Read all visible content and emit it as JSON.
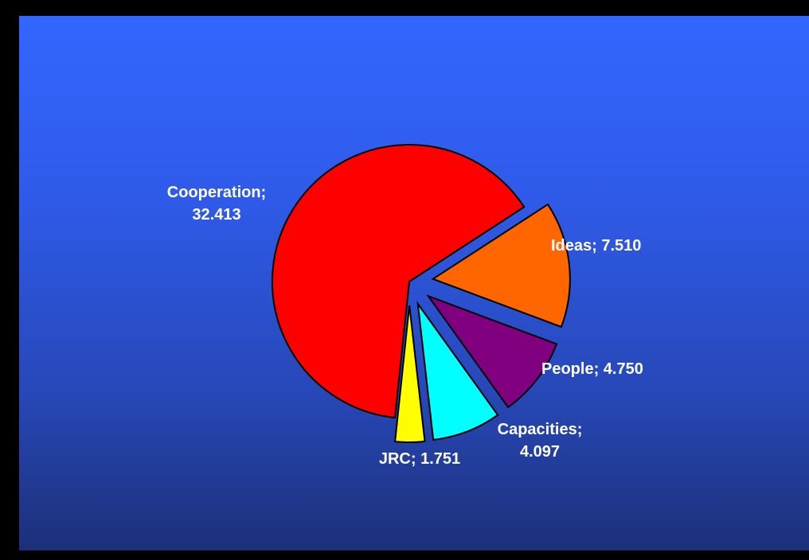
{
  "chart_data": {
    "type": "pie",
    "title": "",
    "series": [
      {
        "values": [
          32.413,
          7.51,
          4.75,
          4.097,
          1.751
        ],
        "categories": [
          "Cooperation",
          "Ideas",
          "People",
          "Capacities",
          "JRC"
        ]
      }
    ],
    "slices": [
      {
        "name": "Cooperation",
        "value": 32.413,
        "color": "#ff0000",
        "label_line1": "Cooperation;",
        "label_line2": "32.413"
      },
      {
        "name": "Ideas",
        "value": 7.51,
        "color": "#ff6600",
        "label_line1": "Ideas; 7.510",
        "label_line2": ""
      },
      {
        "name": "People",
        "value": 4.75,
        "color": "#800080",
        "label_line1": "People; 4.750",
        "label_line2": ""
      },
      {
        "name": "Capacities",
        "value": 4.097,
        "color": "#00ffff",
        "label_line1": "Capacities;",
        "label_line2": "4.097"
      },
      {
        "name": "JRC",
        "value": 1.751,
        "color": "#ffff00",
        "label_line1": "JRC; 1.751",
        "label_line2": ""
      }
    ],
    "exploded": true,
    "legend": "none",
    "grid": false
  },
  "colors": {
    "frame": "#000000",
    "background_top": "#3366ff",
    "background_bottom": "#1c2f78",
    "slice_outline": "#000000",
    "label_text": "#ffffff"
  }
}
